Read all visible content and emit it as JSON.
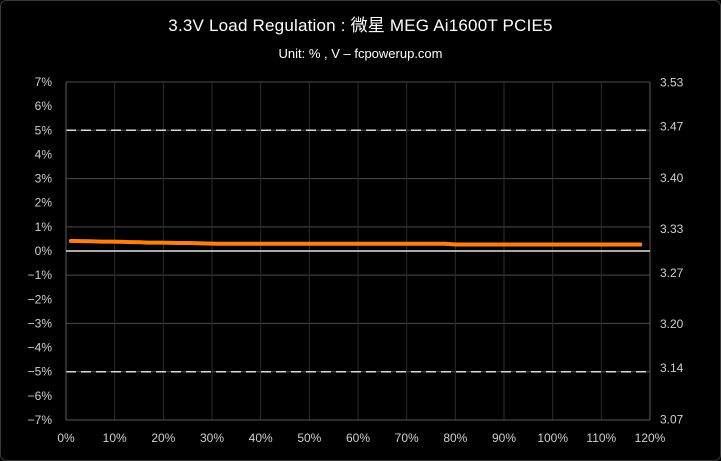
{
  "chart_data": {
    "type": "line",
    "title": "3.3V Load Regulation : 微星 MEG Ai1600T PCIE5",
    "subtitle": "Unit: % , V  – fcpowerup.com",
    "x_ticks": [
      "0%",
      "10%",
      "20%",
      "30%",
      "40%",
      "50%",
      "60%",
      "70%",
      "80%",
      "90%",
      "100%",
      "110%",
      "120%"
    ],
    "xlim": [
      0,
      120
    ],
    "y_left_ticks": [
      "7%",
      "6%",
      "5%",
      "4%",
      "3%",
      "2%",
      "1%",
      "0%",
      "−1%",
      "−2%",
      "−3%",
      "−4%",
      "−5%",
      "−6%",
      "−7%"
    ],
    "ylim_left": [
      -7,
      7
    ],
    "y_right_ticks": [
      "3.53",
      "3.47",
      "3.40",
      "3.33",
      "3.27",
      "3.20",
      "3.14",
      "3.07"
    ],
    "ylim_right": [
      3.069,
      3.531
    ],
    "limit_lines": [
      5,
      -5
    ],
    "grid": true,
    "series": [
      {
        "color": "#ff7f0e",
        "x": [
          1,
          3,
          5,
          7,
          9,
          11,
          13,
          15,
          17,
          19,
          21,
          23,
          25,
          27,
          29,
          31,
          35,
          40,
          45,
          50,
          55,
          60,
          65,
          70,
          75,
          78,
          80,
          82,
          85,
          90,
          95,
          100,
          105,
          110,
          115,
          118
        ],
        "y": [
          0.42,
          0.41,
          0.4,
          0.39,
          0.39,
          0.38,
          0.37,
          0.36,
          0.35,
          0.35,
          0.34,
          0.33,
          0.33,
          0.32,
          0.31,
          0.3,
          0.3,
          0.3,
          0.3,
          0.3,
          0.3,
          0.3,
          0.3,
          0.3,
          0.3,
          0.3,
          0.27,
          0.27,
          0.27,
          0.27,
          0.27,
          0.27,
          0.27,
          0.27,
          0.27,
          0.27
        ]
      }
    ]
  }
}
